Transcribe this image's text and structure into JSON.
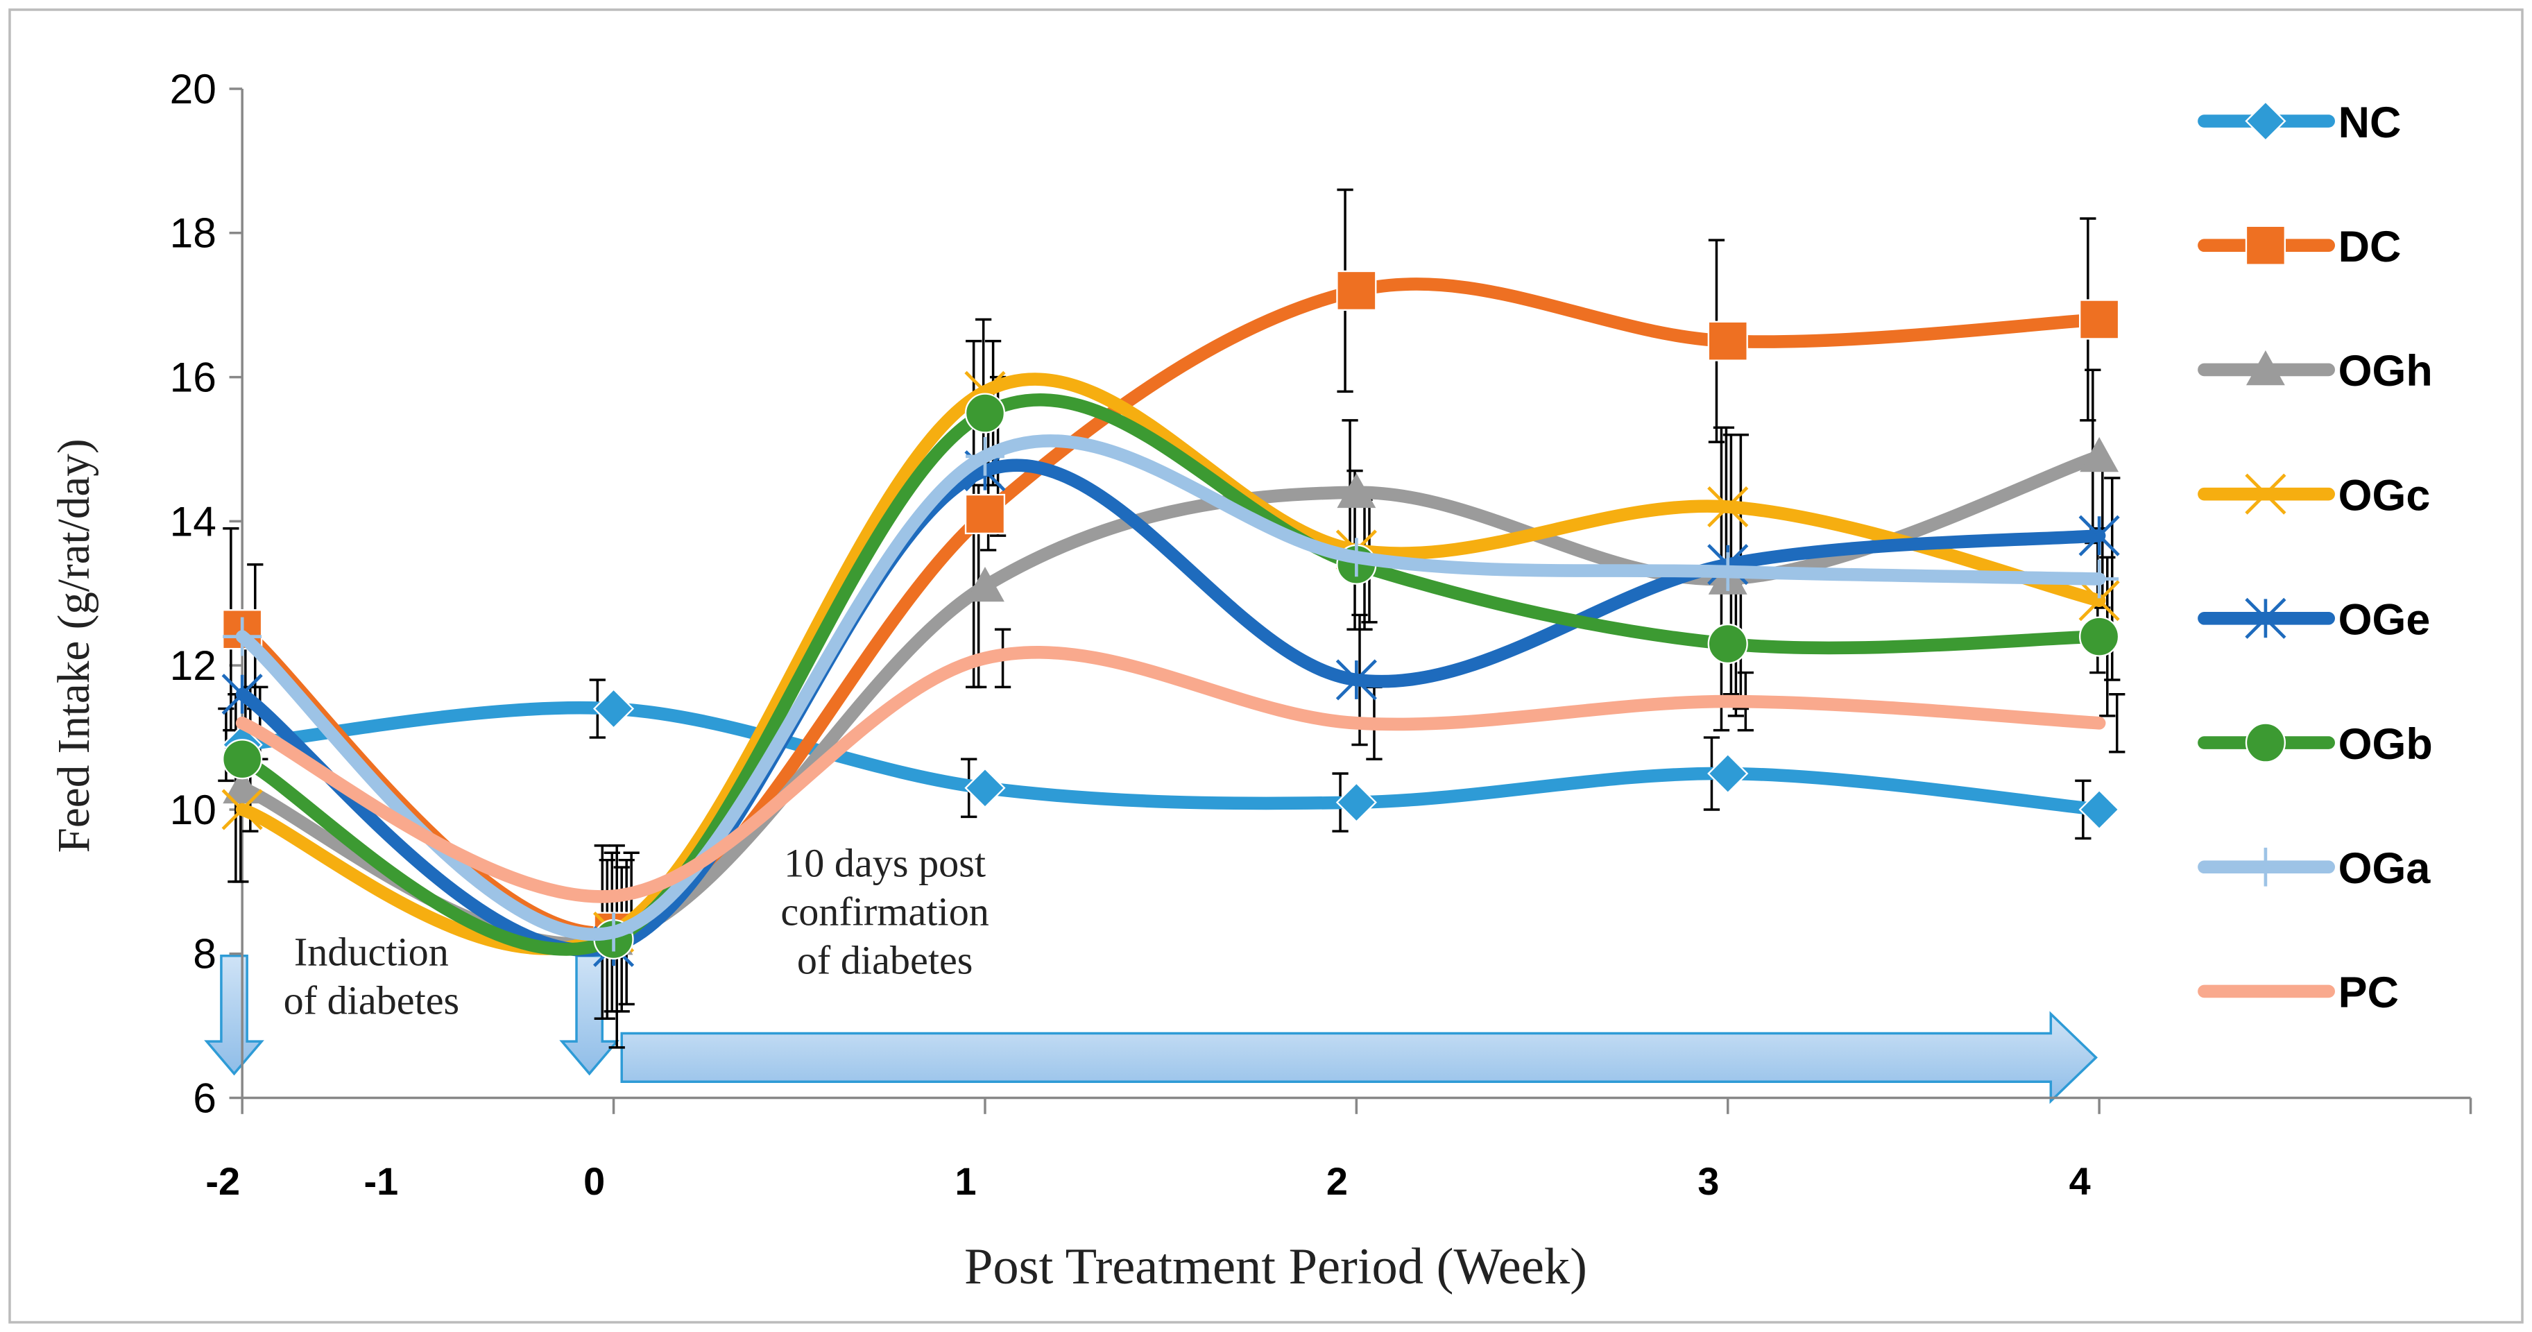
{
  "chart_data": {
    "type": "line",
    "x_label": "Post Treatment Period (Week)",
    "y_label": "Feed Intake (g/rat/day)",
    "categories": [
      "-2",
      "0",
      "1",
      "2",
      "3",
      "4"
    ],
    "extra_x_label": "-1",
    "ylim": [
      6,
      20
    ],
    "yticks": [
      6,
      8,
      10,
      12,
      14,
      16,
      18,
      20
    ],
    "annotations": [
      {
        "lines": [
          "Induction",
          "of diabetes"
        ]
      },
      {
        "lines": [
          "10 days post",
          "confirmation",
          "of diabetes"
        ]
      }
    ],
    "series": [
      {
        "name": "NC",
        "color": "#2e9bd6",
        "marker": "diamond",
        "values": [
          10.9,
          11.4,
          10.3,
          10.1,
          10.5,
          10.0
        ],
        "errors": [
          0.5,
          0.4,
          0.4,
          0.4,
          0.5,
          0.4
        ]
      },
      {
        "name": "DC",
        "color": "#ee7022",
        "marker": "square",
        "values": [
          12.5,
          8.3,
          14.1,
          17.2,
          16.5,
          16.8
        ],
        "errors": [
          1.4,
          1.2,
          2.4,
          1.4,
          1.4,
          1.4
        ]
      },
      {
        "name": "OGh",
        "color": "#9b9b9b",
        "marker": "triangle",
        "values": [
          10.3,
          8.2,
          13.1,
          14.4,
          13.2,
          14.9
        ],
        "errors": [
          1.3,
          1.1,
          1.4,
          1.0,
          2.1,
          1.2
        ]
      },
      {
        "name": "OGc",
        "color": "#f6ae10",
        "marker": "x",
        "values": [
          10.0,
          8.3,
          15.8,
          13.6,
          14.2,
          12.9
        ],
        "errors": [
          1.0,
          1.1,
          1.0,
          1.1,
          1.1,
          1.0
        ]
      },
      {
        "name": "OGe",
        "color": "#1e6bbd",
        "marker": "star",
        "values": [
          11.6,
          8.1,
          14.7,
          11.8,
          13.4,
          13.8
        ],
        "errors": [
          1.0,
          1.4,
          1.1,
          0.9,
          1.8,
          1.0
        ]
      },
      {
        "name": "OGb",
        "color": "#3c9a32",
        "marker": "circle",
        "values": [
          10.7,
          8.2,
          15.5,
          13.4,
          12.3,
          12.4
        ],
        "errors": [
          1.0,
          1.0,
          1.0,
          0.9,
          1.0,
          1.1
        ]
      },
      {
        "name": "OGa",
        "color": "#9dc3e6",
        "marker": "plus",
        "values": [
          12.4,
          8.3,
          14.9,
          13.5,
          13.3,
          13.2
        ],
        "errors": [
          1.0,
          1.0,
          1.1,
          0.9,
          1.9,
          1.4
        ]
      },
      {
        "name": "PC",
        "color": "#f9a98d",
        "marker": "none",
        "values": [
          11.2,
          8.8,
          12.1,
          11.2,
          11.5,
          11.2
        ],
        "errors": [
          0.5,
          0.6,
          0.4,
          0.5,
          0.4,
          0.4
        ]
      }
    ]
  }
}
